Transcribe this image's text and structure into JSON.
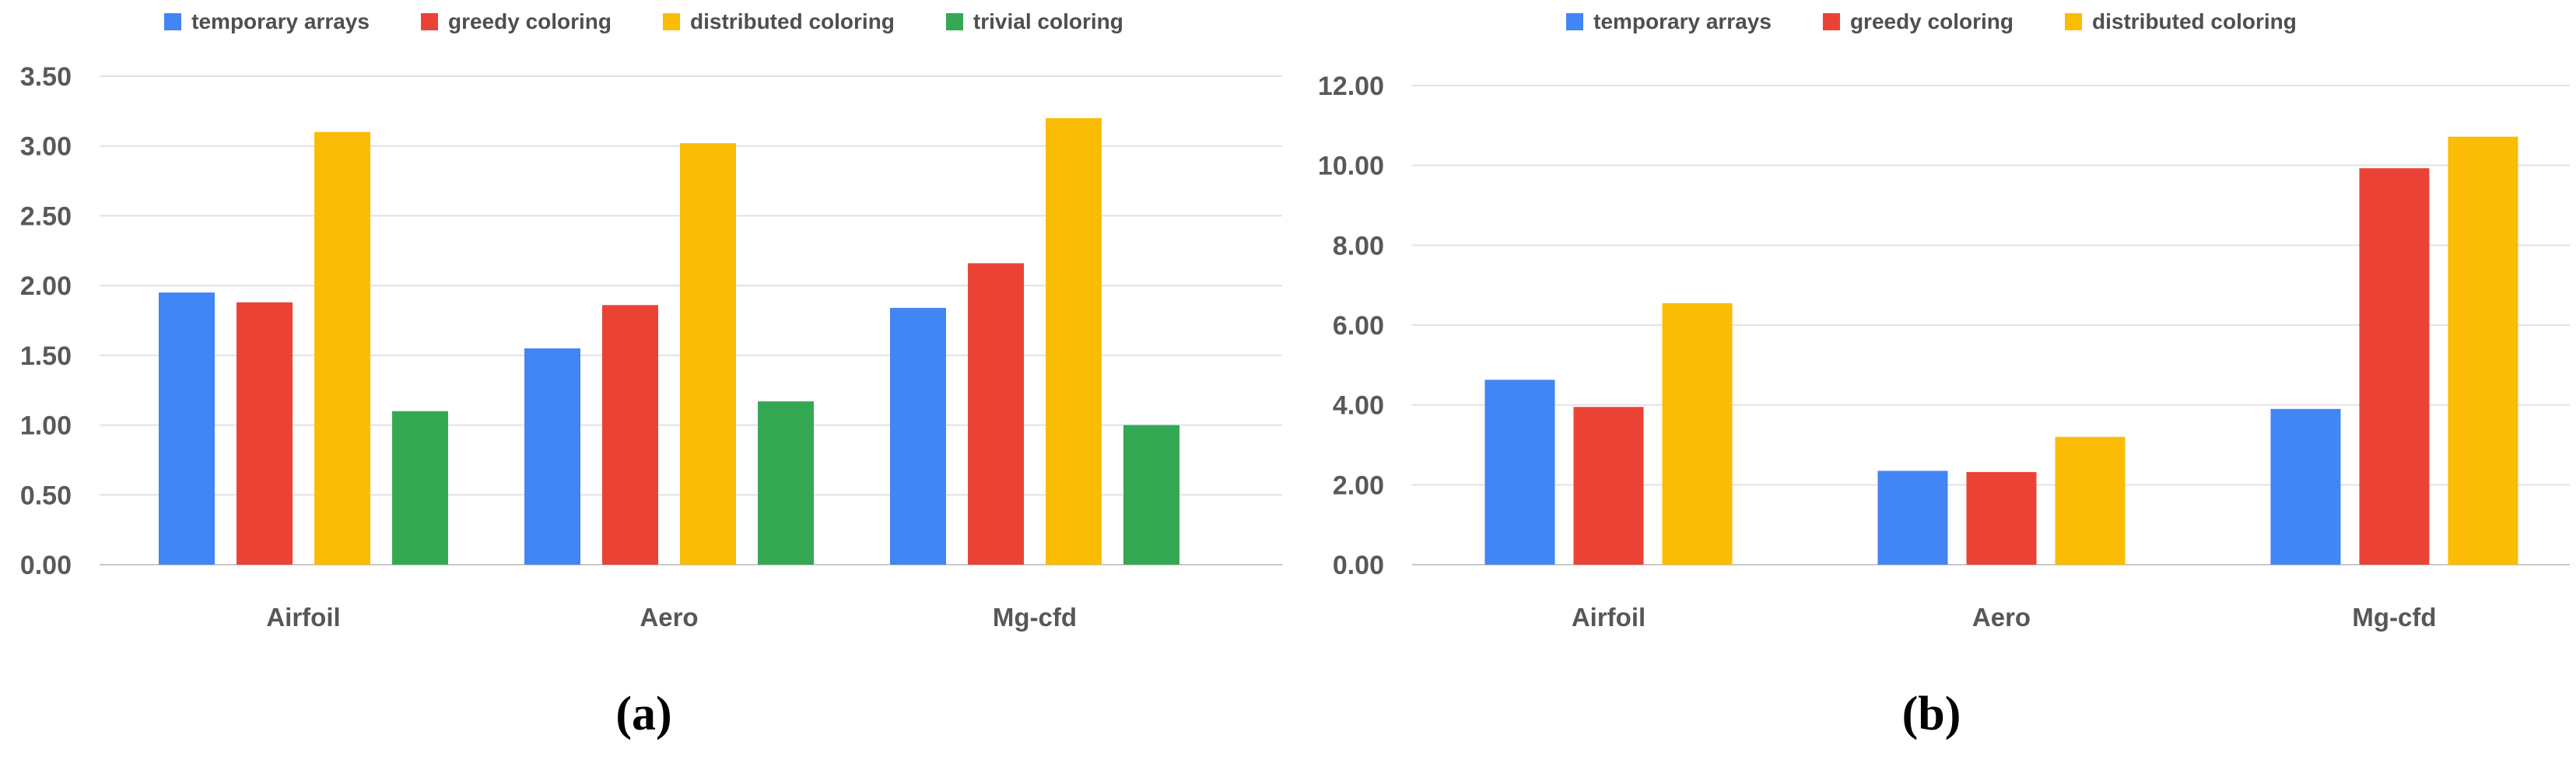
{
  "style": {
    "grid_color": "#e2e2e2",
    "baseline_color": "#c9c9c9",
    "tick_text_color": "#595959",
    "category_text_color": "#56575a",
    "legend_text_color": "#4e4f52",
    "background": "#ffffff",
    "series_colors": {
      "temporary arrays": "#4285F4",
      "greedy coloring": "#EA4335",
      "distributed coloring": "#FBBC05",
      "trivial coloring": "#34A853"
    }
  },
  "chart_data": [
    {
      "id": "a",
      "type": "bar",
      "title": "",
      "xlabel": "",
      "ylabel": "",
      "categories": [
        "Airfoil",
        "Aero",
        "Mg-cfd"
      ],
      "series": [
        {
          "name": "temporary arrays",
          "color": "#4285F4",
          "values": [
            1.95,
            1.55,
            1.84
          ]
        },
        {
          "name": "greedy coloring",
          "color": "#EA4335",
          "values": [
            1.88,
            1.86,
            2.16
          ]
        },
        {
          "name": "distributed coloring",
          "color": "#FBBC05",
          "values": [
            3.1,
            3.02,
            3.2
          ]
        },
        {
          "name": "trivial coloring",
          "color": "#34A853",
          "values": [
            1.1,
            1.17,
            1.0
          ]
        }
      ],
      "ylim": [
        0,
        3.5
      ],
      "ytick_step": 0.5,
      "ytick_format_decimals": 2,
      "ytick_labels": [
        "0.00",
        "0.50",
        "1.00",
        "1.50",
        "2.00",
        "2.50",
        "3.00",
        "3.50"
      ],
      "grid": true,
      "legend_position": "top",
      "caption": "(a)"
    },
    {
      "id": "b",
      "type": "bar",
      "title": "",
      "xlabel": "",
      "ylabel": "",
      "categories": [
        "Airfoil",
        "Aero",
        "Mg-cfd"
      ],
      "series": [
        {
          "name": "temporary arrays",
          "color": "#4285F4",
          "values": [
            4.63,
            2.35,
            3.9
          ]
        },
        {
          "name": "greedy coloring",
          "color": "#EA4335",
          "values": [
            3.95,
            2.32,
            9.93
          ]
        },
        {
          "name": "distributed coloring",
          "color": "#FBBC05",
          "values": [
            6.55,
            3.2,
            10.72
          ]
        }
      ],
      "ylim": [
        0,
        12
      ],
      "ytick_step": 2,
      "ytick_format_decimals": 2,
      "ytick_labels": [
        "0.00",
        "2.00",
        "4.00",
        "6.00",
        "8.00",
        "10.00",
        "12.00"
      ],
      "grid": true,
      "legend_position": "top",
      "caption": "(b)"
    }
  ]
}
